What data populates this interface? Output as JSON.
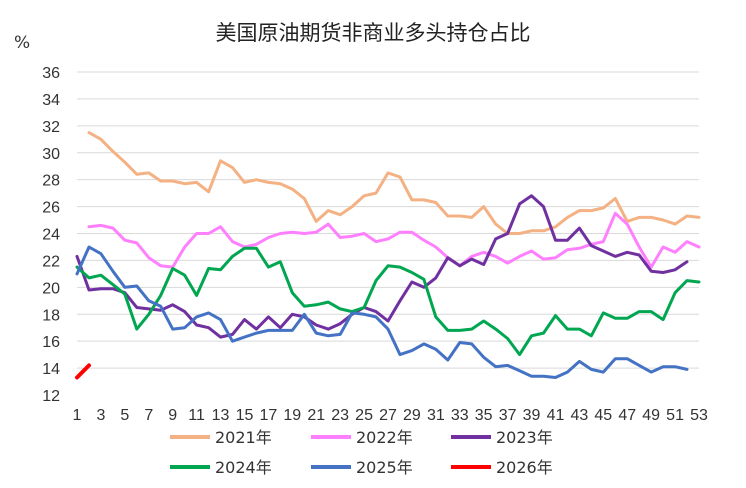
{
  "chart_data": {
    "type": "line",
    "title": "美国原油期货非商业多头持仓占比",
    "ylabel": "%",
    "xlabel": "",
    "ylim": [
      12,
      36
    ],
    "yticks": [
      12,
      14,
      16,
      18,
      20,
      22,
      24,
      26,
      28,
      30,
      32,
      34,
      36
    ],
    "xlim": [
      1,
      53
    ],
    "xticks": [
      1,
      3,
      5,
      7,
      9,
      11,
      13,
      15,
      17,
      19,
      21,
      23,
      25,
      27,
      29,
      31,
      33,
      35,
      37,
      39,
      41,
      43,
      45,
      47,
      49,
      51,
      53
    ],
    "grid": true,
    "legend_position": "bottom",
    "series": [
      {
        "name": "2021年",
        "color": "#f4b183",
        "x": [
          2,
          3,
          4,
          5,
          6,
          7,
          8,
          9,
          10,
          11,
          12,
          13,
          14,
          15,
          16,
          17,
          18,
          19,
          20,
          21,
          22,
          23,
          24,
          25,
          26,
          27,
          28,
          29,
          30,
          31,
          32,
          33,
          34,
          35,
          36,
          37,
          38,
          39,
          40,
          41,
          42,
          43,
          44,
          45,
          46,
          47,
          48,
          49,
          50,
          51,
          52,
          53
        ],
        "values": [
          31.5,
          31.0,
          30.1,
          29.3,
          28.4,
          28.5,
          27.9,
          27.9,
          27.7,
          27.8,
          27.1,
          29.4,
          28.9,
          27.8,
          28.0,
          27.8,
          27.7,
          27.3,
          26.6,
          24.9,
          25.7,
          25.4,
          26.0,
          26.8,
          27.0,
          28.5,
          28.2,
          26.5,
          26.5,
          26.3,
          25.3,
          25.3,
          25.2,
          26.0,
          24.7,
          24.0,
          24.0,
          24.2,
          24.2,
          24.5,
          25.2,
          25.7,
          25.7,
          25.9,
          26.6,
          24.9,
          25.2,
          25.2,
          25.0,
          24.7,
          25.3,
          25.2
        ]
      },
      {
        "name": "2022年",
        "color": "#ff80ff",
        "x": [
          2,
          3,
          4,
          5,
          6,
          7,
          8,
          9,
          10,
          11,
          12,
          13,
          14,
          15,
          16,
          17,
          18,
          19,
          20,
          21,
          22,
          23,
          24,
          25,
          26,
          27,
          28,
          29,
          30,
          31,
          32,
          33,
          34,
          35,
          36,
          37,
          38,
          39,
          40,
          41,
          42,
          43,
          44,
          45,
          46,
          47,
          48,
          49,
          50,
          51,
          52,
          53
        ],
        "values": [
          24.5,
          24.6,
          24.4,
          23.5,
          23.3,
          22.2,
          21.6,
          21.5,
          23.0,
          24.0,
          24.0,
          24.5,
          23.4,
          23.0,
          23.2,
          23.7,
          24.0,
          24.1,
          24.0,
          24.1,
          24.7,
          23.7,
          23.8,
          24.0,
          23.4,
          23.6,
          24.1,
          24.1,
          23.5,
          23.0,
          22.2,
          21.6,
          22.3,
          22.6,
          22.3,
          21.8,
          22.3,
          22.7,
          22.1,
          22.2,
          22.8,
          22.9,
          23.2,
          23.4,
          25.5,
          24.7,
          23.0,
          21.5,
          23.0,
          22.6,
          23.4,
          23.0
        ]
      },
      {
        "name": "2023年",
        "color": "#7030a0",
        "x": [
          1,
          2,
          3,
          4,
          5,
          6,
          7,
          8,
          9,
          10,
          11,
          12,
          13,
          14,
          15,
          16,
          17,
          18,
          19,
          20,
          21,
          22,
          23,
          24,
          25,
          26,
          27,
          28,
          29,
          30,
          31,
          32,
          33,
          34,
          35,
          36,
          37,
          38,
          39,
          40,
          41,
          42,
          43,
          44,
          45,
          46,
          47,
          48,
          49,
          50,
          51,
          52
        ],
        "values": [
          22.3,
          19.8,
          19.9,
          19.9,
          19.6,
          18.5,
          18.4,
          18.3,
          18.7,
          18.2,
          17.2,
          17.0,
          16.3,
          16.5,
          17.6,
          16.9,
          17.8,
          17.0,
          18.0,
          17.8,
          17.2,
          16.9,
          17.3,
          18.0,
          18.5,
          18.2,
          17.5,
          19.0,
          20.4,
          20.0,
          20.7,
          22.2,
          21.6,
          22.1,
          21.7,
          23.6,
          24.0,
          26.2,
          26.8,
          26.0,
          23.5,
          23.5,
          24.4,
          23.1,
          22.7,
          22.3,
          22.6,
          22.4,
          21.2,
          21.1,
          21.3,
          21.9
        ]
      },
      {
        "name": "2024年",
        "color": "#00a650",
        "x": [
          1,
          2,
          3,
          4,
          5,
          6,
          7,
          8,
          9,
          10,
          11,
          12,
          13,
          14,
          15,
          16,
          17,
          18,
          19,
          20,
          21,
          22,
          23,
          24,
          25,
          26,
          27,
          28,
          29,
          30,
          31,
          32,
          33,
          34,
          35,
          36,
          37,
          38,
          39,
          40,
          41,
          42,
          43,
          44,
          45,
          46,
          47,
          48,
          49,
          50,
          51,
          52,
          53
        ],
        "values": [
          21.5,
          20.7,
          20.9,
          20.2,
          19.5,
          16.9,
          18.0,
          19.4,
          21.4,
          20.9,
          19.4,
          21.4,
          21.3,
          22.3,
          22.9,
          22.9,
          21.5,
          21.9,
          19.6,
          18.6,
          18.7,
          18.9,
          18.4,
          18.2,
          18.5,
          20.5,
          21.6,
          21.5,
          21.1,
          20.6,
          17.8,
          16.8,
          16.8,
          16.9,
          17.5,
          16.9,
          16.2,
          15.0,
          16.4,
          16.6,
          17.9,
          16.9,
          16.9,
          16.4,
          18.1,
          17.7,
          17.7,
          18.2,
          18.2,
          17.6,
          19.6,
          20.5,
          20.4
        ]
      },
      {
        "name": "2025年",
        "color": "#4472c4",
        "x": [
          1,
          2,
          3,
          4,
          5,
          6,
          7,
          8,
          9,
          10,
          11,
          12,
          13,
          14,
          15,
          16,
          17,
          18,
          19,
          20,
          21,
          22,
          23,
          24,
          25,
          26,
          27,
          28,
          29,
          30,
          31,
          32,
          33,
          34,
          35,
          36,
          37,
          38,
          39,
          40,
          41,
          42,
          43,
          44,
          45,
          46,
          47,
          48,
          49,
          50,
          51,
          52
        ],
        "values": [
          21.0,
          23.0,
          22.5,
          21.2,
          20.0,
          20.1,
          19.0,
          18.6,
          16.9,
          17.0,
          17.8,
          18.1,
          17.6,
          16.0,
          16.3,
          16.6,
          16.8,
          16.8,
          16.8,
          18.0,
          16.6,
          16.4,
          16.5,
          18.1,
          18.0,
          17.8,
          16.9,
          15.0,
          15.3,
          15.8,
          15.4,
          14.6,
          15.9,
          15.8,
          14.8,
          14.1,
          14.2,
          13.8,
          13.4,
          13.4,
          13.3,
          13.7,
          14.5,
          13.9,
          13.7,
          14.7,
          14.7,
          14.2,
          13.7,
          14.1,
          14.1,
          13.9
        ]
      },
      {
        "name": "2026年",
        "color": "#ff0000",
        "x": [
          1,
          2
        ],
        "values": [
          13.3,
          14.2
        ]
      }
    ]
  }
}
